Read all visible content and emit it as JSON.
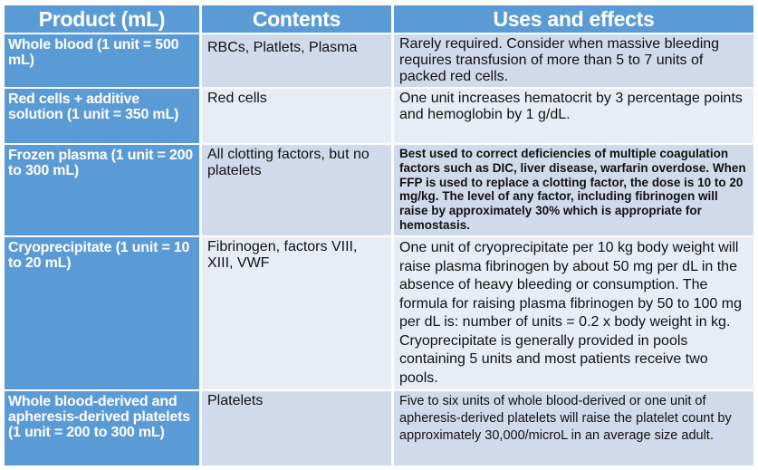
{
  "colors": {
    "accent": "#5b9bd5",
    "row_odd": "#cfdaea",
    "row_even": "#e8edf5"
  },
  "headers": [
    "Product (mL)",
    "Contents",
    "Uses and effects"
  ],
  "rows": [
    {
      "product": "Whole blood (1 unit = 500 mL)",
      "contents": "RBCs, Platlets, Plasma",
      "uses": "Rarely required. Consider when massive bleeding requires transfusion of  more than 5 to 7 units of packed red cells."
    },
    {
      "product": "Red cells + additive solution (1 unit = 350 mL)",
      "contents": "Red cells",
      "uses": "One unit increases hematocrit by 3 percentage points and hemoglobin by 1 g/dL."
    },
    {
      "product": "Frozen plasma (1 unit = 200 to 300 mL)",
      "contents": "All clotting factors, but no platelets",
      "uses": "Best used to correct deficiencies of multiple coagulation factors such as DIC, liver disease, warfarin overdose. When FFP is used to replace a clotting factor, the dose is 10 to 20 mg/kg. The level of any factor, including fibrinogen will raise by approximately 30% which is appropriate for hemostasis."
    },
    {
      "product": "Cryoprecipitate (1 unit = 10 to 20 mL)",
      "contents": "Fibrinogen, factors VIII, XIII, VWF",
      "uses": "One unit of cryoprecipitate per 10 kg body weight will raise plasma fibrinogen by about 50 mg per dL in the absence of heavy bleeding or consumption. The formula for raising plasma fibrinogen by 50 to 100 mg per dL is: number of units = 0.2 x body weight in kg. Cryoprecipitate is generally provided in pools containing 5 units and most patients receive two pools."
    },
    {
      "product": "Whole blood-derived and apheresis-derived platelets (1 unit = 200 to 300 mL)",
      "contents": "Platelets",
      "uses": "Five to six units of whole blood-derived or one unit of apheresis-derived platelets will raise the platelet count by approximately 30,000/microL in an average size adult."
    }
  ]
}
